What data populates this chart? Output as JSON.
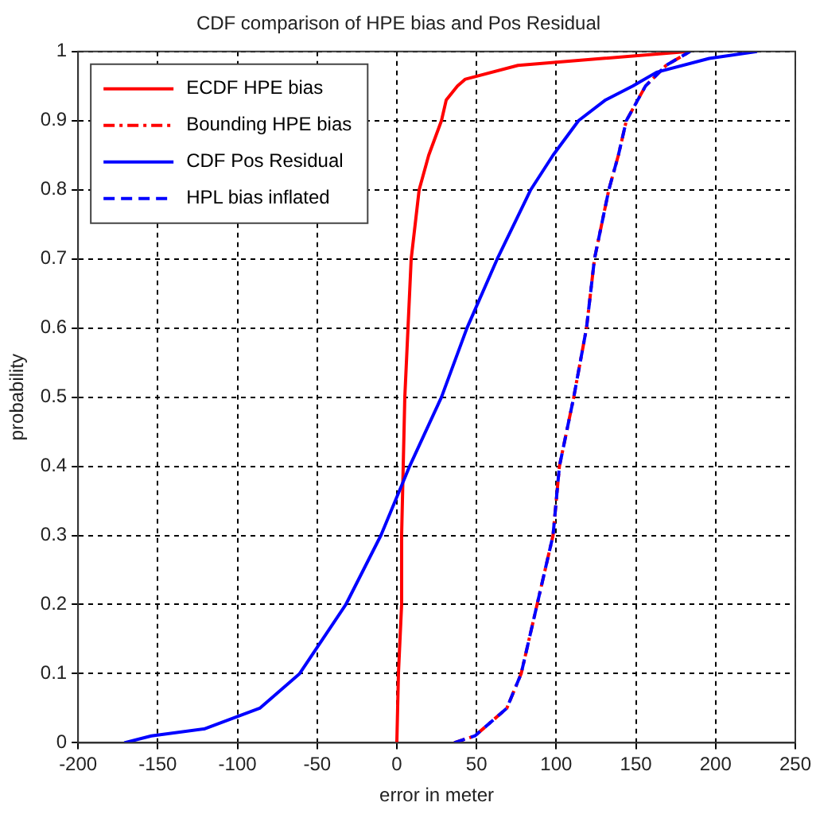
{
  "chart_data": {
    "type": "line",
    "title": "CDF comparison of HPE bias and Pos Residual",
    "xlabel": "error in meter",
    "ylabel": "probability",
    "xlim": [
      -200,
      250
    ],
    "xticks": [
      -200,
      -150,
      -100,
      -50,
      0,
      50,
      100,
      150,
      200,
      250
    ],
    "ylim": [
      0,
      1
    ],
    "yticks": [
      0,
      0.1,
      0.2,
      0.3,
      0.4,
      0.5,
      0.6,
      0.7,
      0.8,
      0.9,
      1
    ],
    "grid": true,
    "legend": "top left",
    "marker": "none",
    "series": [
      {
        "name": "ECDF HPE bias",
        "color": "#ff0000",
        "line_style": "solid",
        "x": [
          0,
          1,
          3,
          3,
          4,
          5,
          7,
          9,
          14,
          20,
          28,
          31,
          38,
          43,
          76,
          129,
          183
        ],
        "values": [
          0,
          0.1,
          0.2,
          0.3,
          0.4,
          0.5,
          0.6,
          0.7,
          0.8,
          0.85,
          0.9,
          0.93,
          0.95,
          0.96,
          0.98,
          0.99,
          1
        ]
      },
      {
        "name": "Bounding HPE bias",
        "color": "#ff0000",
        "line_style": "dashdot",
        "x": [
          36,
          49,
          69,
          78,
          88,
          98,
          102,
          111,
          119,
          124,
          133,
          139,
          144,
          156,
          169,
          184
        ],
        "values": [
          0,
          0.01,
          0.05,
          0.1,
          0.2,
          0.3,
          0.4,
          0.5,
          0.6,
          0.7,
          0.8,
          0.85,
          0.9,
          0.95,
          0.98,
          1
        ]
      },
      {
        "name": "CDF Pos Residual",
        "color": "#0000ff",
        "line_style": "solid",
        "x": [
          -171,
          -154,
          -121,
          -86,
          -61,
          -32,
          -10,
          8,
          28,
          44,
          63,
          84,
          98,
          114,
          131,
          148,
          163,
          196,
          226
        ],
        "values": [
          0,
          0.01,
          0.02,
          0.05,
          0.1,
          0.2,
          0.3,
          0.4,
          0.5,
          0.6,
          0.7,
          0.8,
          0.85,
          0.9,
          0.93,
          0.95,
          0.97,
          0.99,
          1
        ]
      },
      {
        "name": "HPL bias inflated",
        "color": "#0000ff",
        "line_style": "dashed",
        "x": [
          36,
          49,
          69,
          78,
          88,
          98,
          102,
          111,
          119,
          124,
          133,
          139,
          144,
          156,
          169,
          184
        ],
        "values": [
          0,
          0.01,
          0.05,
          0.1,
          0.2,
          0.3,
          0.4,
          0.5,
          0.6,
          0.7,
          0.8,
          0.85,
          0.9,
          0.95,
          0.98,
          1
        ]
      }
    ]
  }
}
